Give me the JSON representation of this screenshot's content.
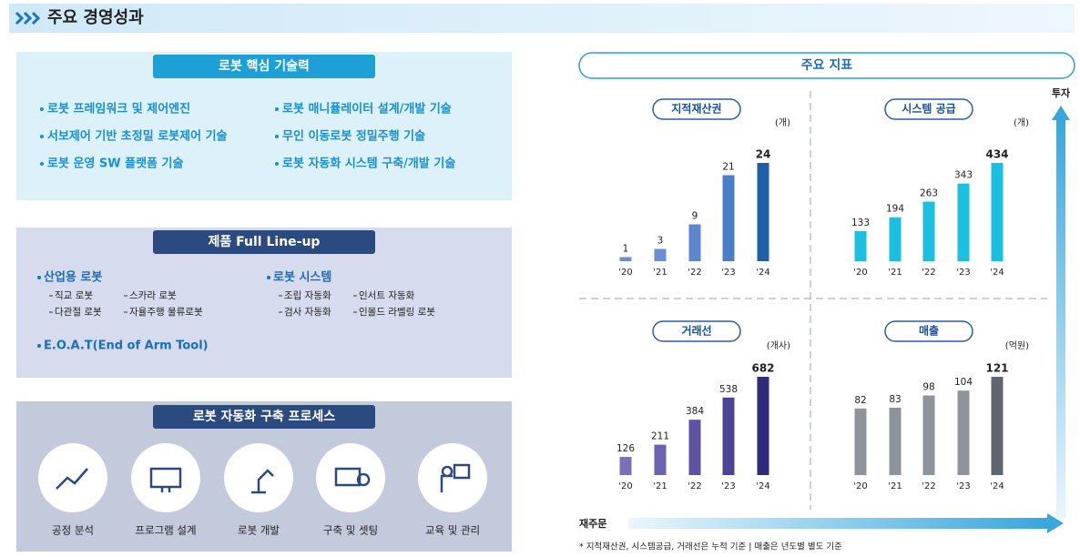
{
  "header": {
    "title": "주요 경영성과"
  },
  "tech": {
    "title": "로봇 핵심 기술력",
    "items": [
      "로봇 프레임워크 및 제어엔진",
      "서보제어 기반 초정밀 로봇제어 기술",
      "로봇 운영 SW 플랫폼 기술",
      "로봇 매니퓰레이터 설계/개발 기술",
      "무인 이동로봇 정밀주행 기술",
      "로봇 자동화 시스템 구축/개발 기술"
    ]
  },
  "lineup": {
    "title": "제품 Full Line-up",
    "groups": [
      {
        "name": "산업용 로봇",
        "items": [
          "직교 로봇",
          "스카라 로봇",
          "다관절 로봇",
          "자율주행 물류로봇"
        ]
      },
      {
        "name": "로봇 시스템",
        "items": [
          "조립 자동화",
          "인서트 자동화",
          "검사 자동화",
          "인몰드 라벨링 로봇"
        ]
      },
      {
        "name": "E.O.A.T(End of Arm Tool)"
      }
    ]
  },
  "process": {
    "title": "로봇 자동화 구축 프로세스",
    "steps": [
      "공정 분석",
      "프로그램 설계",
      "로봇 개발",
      "구축 및 셋팅",
      "교육 및 관리"
    ]
  },
  "indicators": {
    "title": "주요 지표",
    "y_axis": "투자",
    "x_axis": "재주문",
    "footnote": "* 지적재산권, 시스템공급, 거래선은 누적 기준 | 매출은 년도별 별도 기준"
  },
  "chart_data": [
    {
      "type": "bar",
      "title": "지적재산권",
      "unit": "(개)",
      "categories": [
        "'20",
        "'21",
        "'22",
        "'23",
        "'24"
      ],
      "values": [
        1,
        3,
        9,
        21,
        24
      ],
      "colors": [
        "#6b8ed2",
        "#6b8ed2",
        "#5c86cf",
        "#4b7dc8",
        "#1e5fa9"
      ]
    },
    {
      "type": "bar",
      "title": "시스템 공급",
      "unit": "(개)",
      "categories": [
        "'20",
        "'21",
        "'22",
        "'23",
        "'24"
      ],
      "values": [
        133,
        194,
        263,
        343,
        434
      ],
      "colors": [
        "#1bbfe0",
        "#1bbfe0",
        "#1bbfe0",
        "#1bbfe0",
        "#1bbfe0"
      ]
    },
    {
      "type": "bar",
      "title": "거래선",
      "unit": "(개사)",
      "categories": [
        "'20",
        "'21",
        "'22",
        "'23",
        "'24"
      ],
      "values": [
        126,
        211,
        384,
        538,
        682
      ],
      "colors": [
        "#7c70b9",
        "#6c62ad",
        "#5d53a1",
        "#4b4394",
        "#2e2a7c"
      ]
    },
    {
      "type": "bar",
      "title": "매출",
      "unit": "(억원)",
      "categories": [
        "'20",
        "'21",
        "'22",
        "'23",
        "'24"
      ],
      "values": [
        82,
        83,
        98,
        104,
        121
      ],
      "colors": [
        "#8e939c",
        "#8e939c",
        "#8e939c",
        "#8e939c",
        "#5f6670"
      ]
    }
  ]
}
